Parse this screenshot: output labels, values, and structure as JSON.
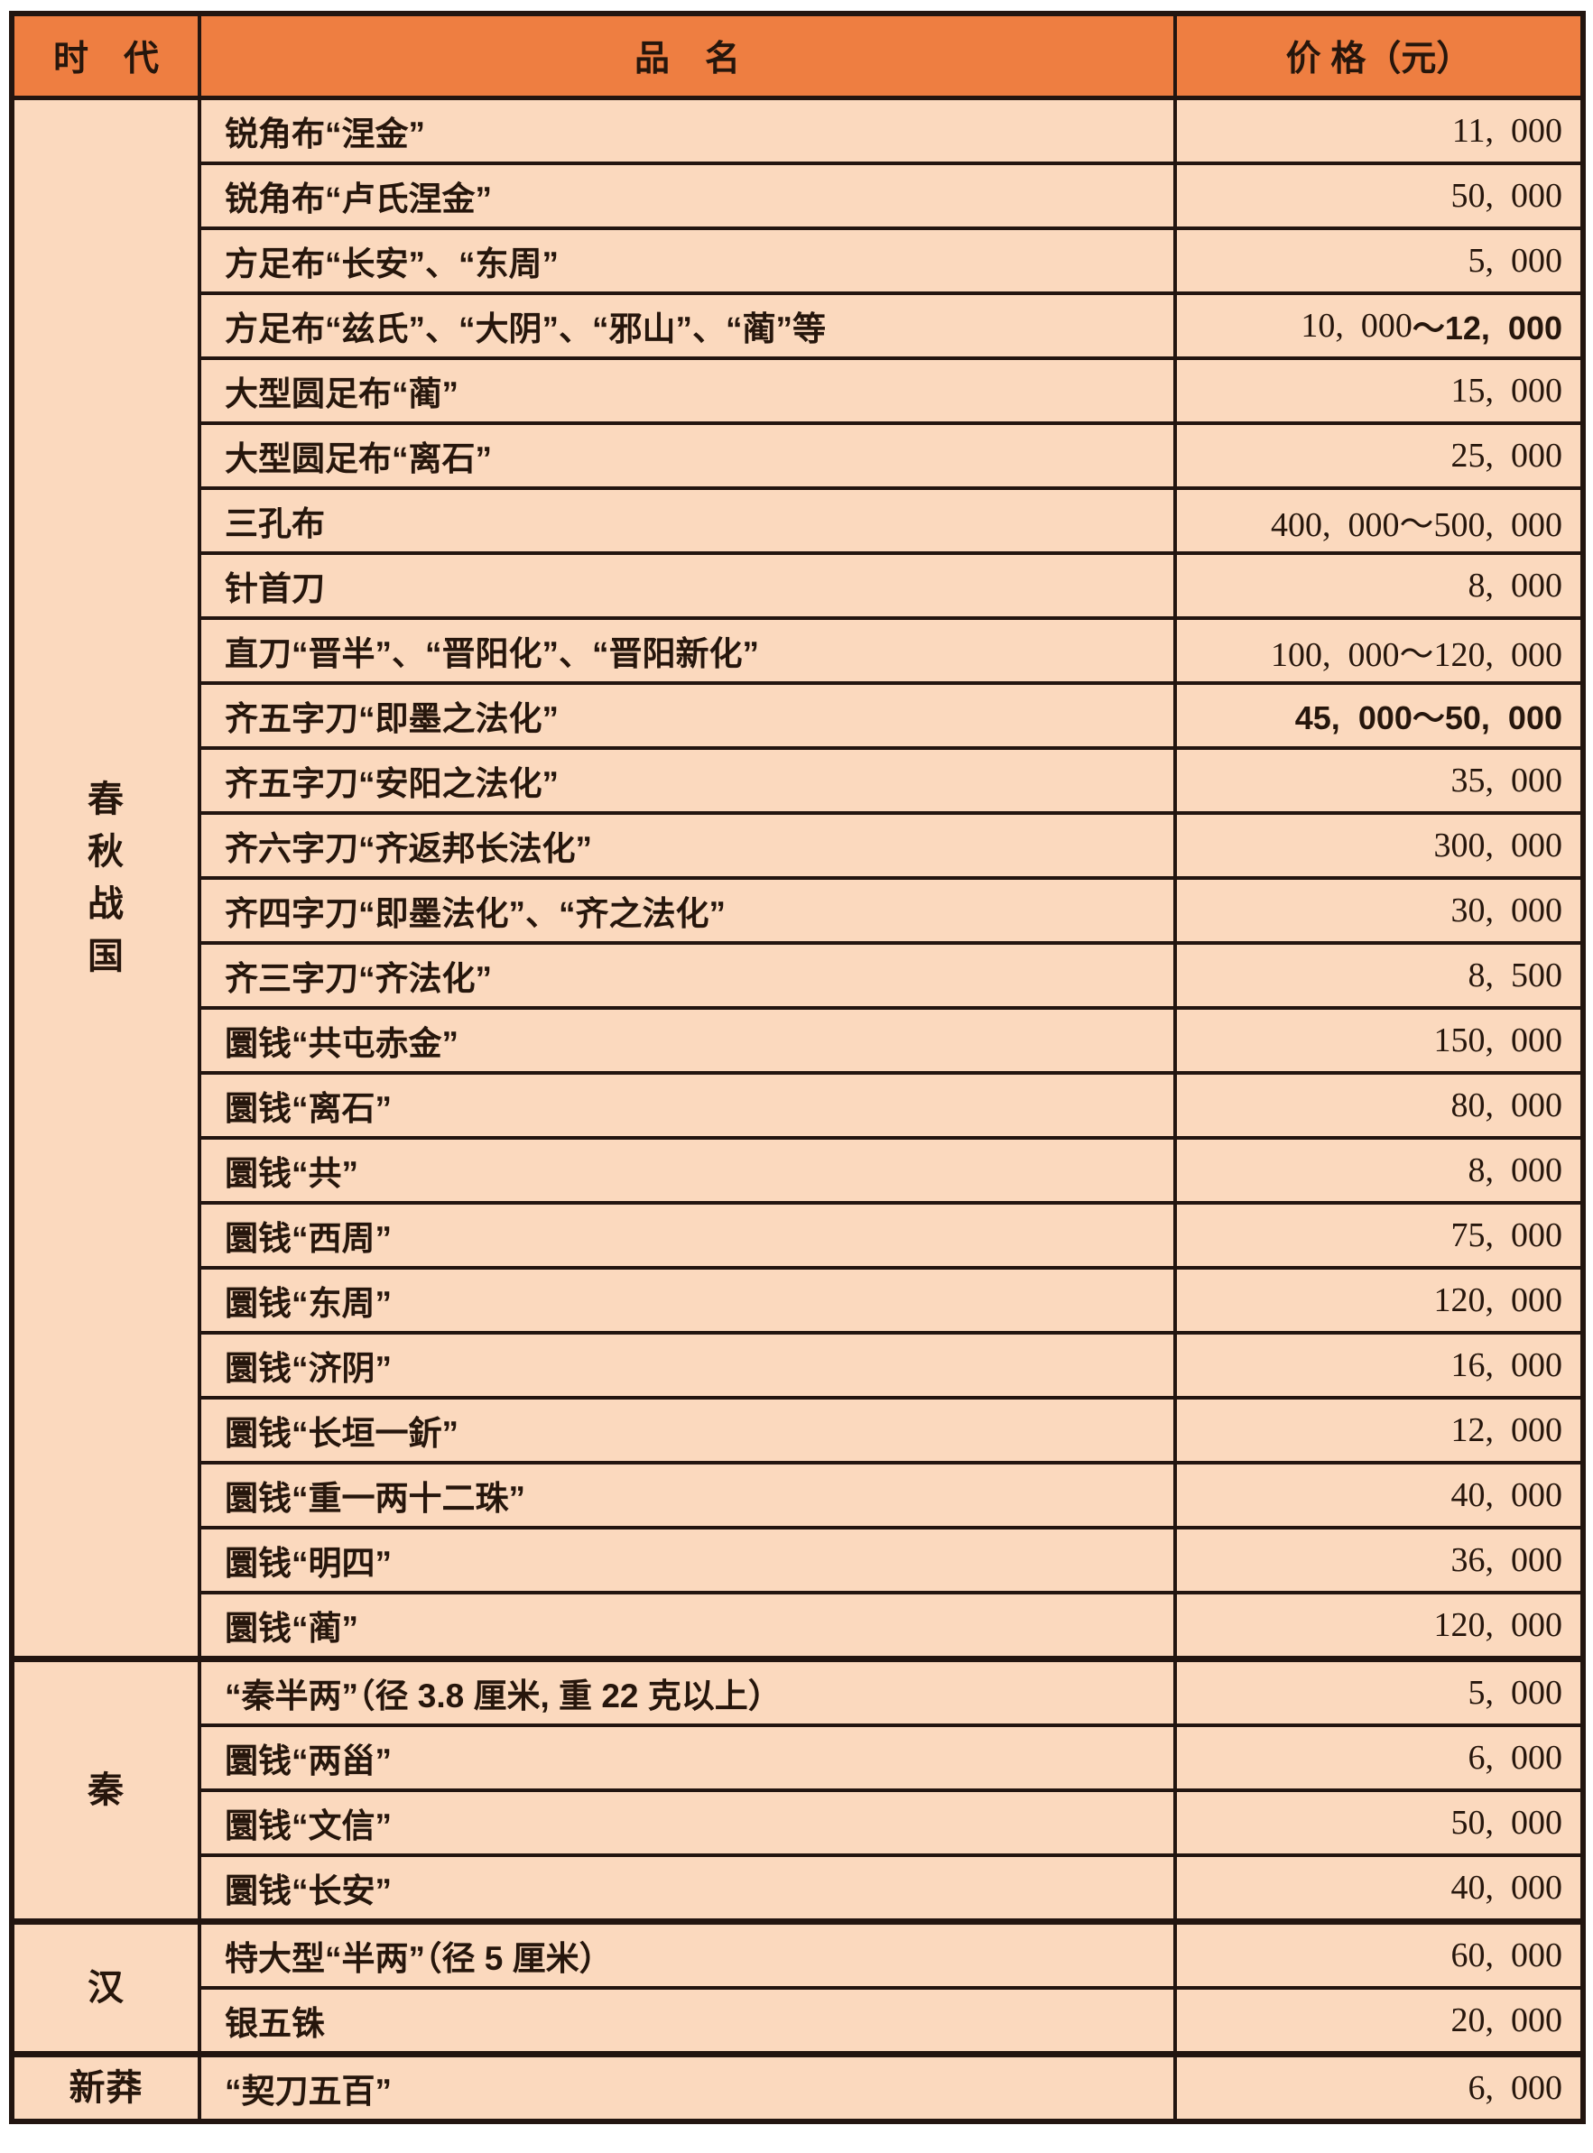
{
  "table": {
    "headers": {
      "era": "时　代",
      "item": "品　名",
      "price": "价 格（元）"
    },
    "colors": {
      "header_bg": "#ee7e41",
      "row_bg": "#fbd9be",
      "border": "#221510",
      "text": "#26160c"
    },
    "sections": [
      {
        "era": "春秋战国",
        "era_lines": [
          "春",
          "秋",
          "战",
          "国"
        ],
        "rows": [
          {
            "name": "锐角布“涅金”",
            "price": [
              {
                "t": "11,  000"
              }
            ]
          },
          {
            "name": "锐角布“卢氏涅金”",
            "price": [
              {
                "t": "50,  000"
              }
            ]
          },
          {
            "name": "方足布“长安”、“东周”",
            "price": [
              {
                "t": "5,  000"
              }
            ]
          },
          {
            "name": "方足布“兹氏”、“大阴”、“邪山”、“蔺”等",
            "price": [
              {
                "t": "10,  000"
              },
              {
                "t": "～12,  000",
                "b": true
              }
            ]
          },
          {
            "name": "大型圆足布“蔺”",
            "price": [
              {
                "t": "15,  000"
              }
            ]
          },
          {
            "name": "大型圆足布“离石”",
            "price": [
              {
                "t": "25,  000"
              }
            ]
          },
          {
            "name": "三孔布",
            "price": [
              {
                "t": "400,  000～500,  000"
              }
            ]
          },
          {
            "name": "针首刀",
            "price": [
              {
                "t": "8,  000"
              }
            ]
          },
          {
            "name": "直刀“晋半”、“晋阳化”、“晋阳新化”",
            "price": [
              {
                "t": "100,  000～120,  000"
              }
            ]
          },
          {
            "name": "齐五字刀“即墨之法化”",
            "price": [
              {
                "t": "45,  000～50,  000",
                "b": true
              }
            ]
          },
          {
            "name": "齐五字刀“安阳之法化”",
            "price": [
              {
                "t": "35,  000"
              }
            ]
          },
          {
            "name": "齐六字刀“齐返邦长法化”",
            "price": [
              {
                "t": "300,  000"
              }
            ]
          },
          {
            "name": "齐四字刀“即墨法化”、“齐之法化”",
            "price": [
              {
                "t": "30,  000"
              }
            ]
          },
          {
            "name": "齐三字刀“齐法化”",
            "price": [
              {
                "t": "8,  500"
              }
            ]
          },
          {
            "name": "圜钱“共屯赤金”",
            "price": [
              {
                "t": "150,  000"
              }
            ]
          },
          {
            "name": "圜钱“离石”",
            "price": [
              {
                "t": "80,  000"
              }
            ]
          },
          {
            "name": "圜钱“共”",
            "price": [
              {
                "t": "8,  000"
              }
            ]
          },
          {
            "name": "圜钱“西周”",
            "price": [
              {
                "t": "75,  000"
              }
            ]
          },
          {
            "name": "圜钱“东周”",
            "price": [
              {
                "t": "120,  000"
              }
            ]
          },
          {
            "name": "圜钱“济阴”",
            "price": [
              {
                "t": "16,  000"
              }
            ]
          },
          {
            "name": "圜钱“长垣一釿”",
            "price": [
              {
                "t": "12,  000"
              }
            ]
          },
          {
            "name": "圜钱“重一两十二珠”",
            "price": [
              {
                "t": "40,  000"
              }
            ]
          },
          {
            "name": "圜钱“明四”",
            "price": [
              {
                "t": "36,  000"
              }
            ]
          },
          {
            "name": "圜钱“蔺”",
            "price": [
              {
                "t": "120,  000"
              }
            ]
          }
        ]
      },
      {
        "era": "秦",
        "era_lines": [
          "秦"
        ],
        "rows": [
          {
            "name": "“秦半两”（径 3.8 厘米, 重 22 克以上）",
            "price": [
              {
                "t": "5,  000"
              }
            ]
          },
          {
            "name": "圜钱“两甾”",
            "price": [
              {
                "t": "6,  000"
              }
            ]
          },
          {
            "name": "圜钱“文信”",
            "price": [
              {
                "t": "50,  000"
              }
            ]
          },
          {
            "name": "圜钱“长安”",
            "price": [
              {
                "t": "40,  000"
              }
            ]
          }
        ]
      },
      {
        "era": "汉",
        "era_lines": [
          "汉"
        ],
        "rows": [
          {
            "name": "特大型“半两”（径 5 厘米）",
            "price": [
              {
                "t": "60,  000"
              }
            ]
          },
          {
            "name": "银五铢",
            "price": [
              {
                "t": "20,  000"
              }
            ]
          }
        ]
      },
      {
        "era": "新莽",
        "era_lines": [
          "新莽"
        ],
        "rows": [
          {
            "name": "“契刀五百”",
            "price": [
              {
                "t": "6,  000"
              }
            ]
          }
        ]
      }
    ]
  }
}
